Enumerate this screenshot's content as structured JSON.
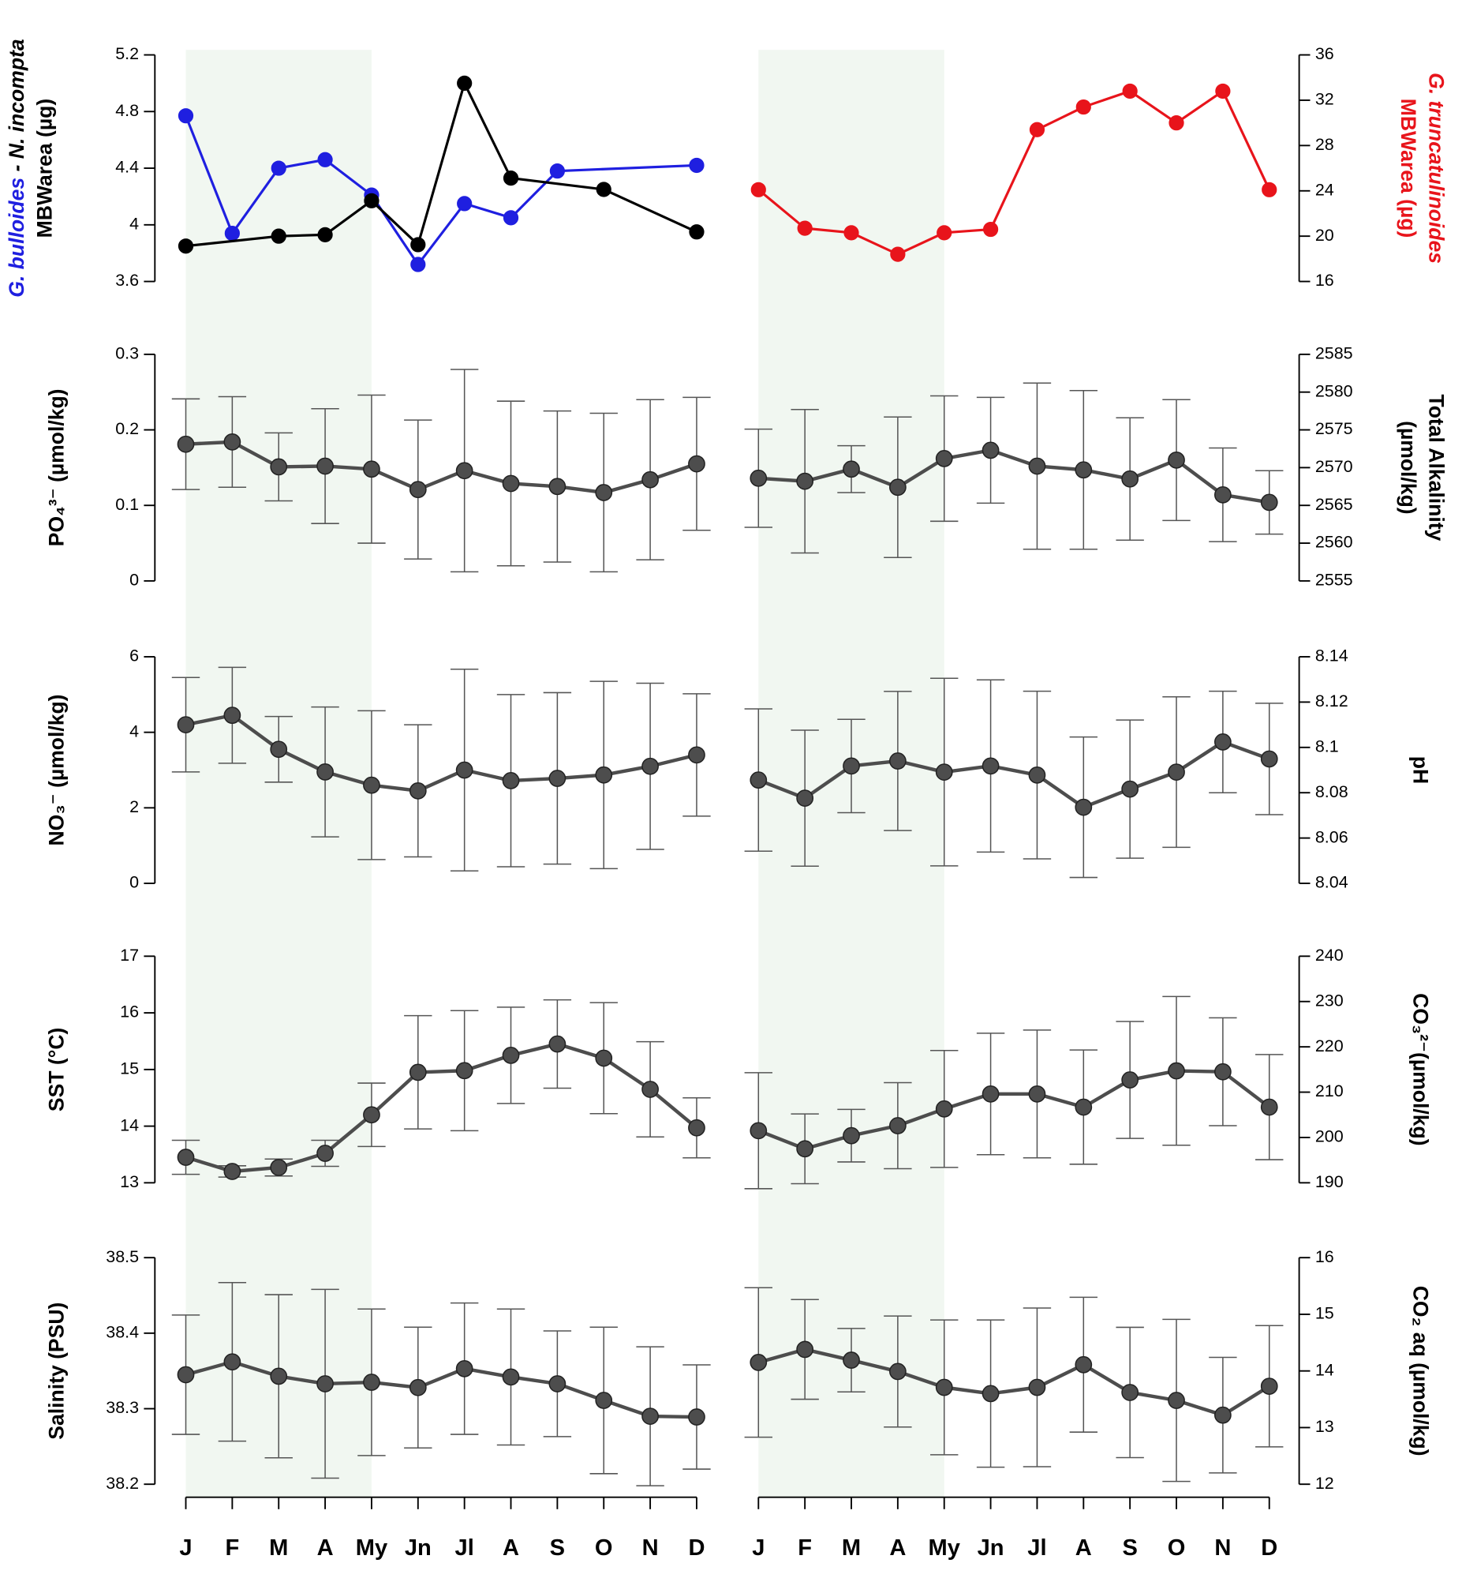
{
  "chart_data": [
    {
      "type": "line",
      "ylabel": [
        [
          "G. bulloides",
          " - ",
          "N. incompta"
        ],
        "MBWarea (µg)"
      ],
      "ylim": [
        3.6,
        5.2
      ],
      "yticks": [
        3.6,
        4,
        4.4,
        4.8,
        5.2
      ],
      "connect_gaps": true,
      "series": [
        {
          "color": "#1f1fe0",
          "values": [
            4.77,
            3.94,
            4.4,
            4.46,
            4.21,
            3.72,
            4.15,
            4.05,
            4.38,
            null,
            null,
            4.42
          ]
        },
        {
          "color": "#000000",
          "values": [
            3.85,
            null,
            3.92,
            3.93,
            4.17,
            3.86,
            5.0,
            4.33,
            null,
            4.25,
            null,
            3.95
          ]
        }
      ]
    },
    {
      "type": "line",
      "ylabel": [
        "G. truncatulinoides",
        "MBWarea (µg)"
      ],
      "ylim": [
        16,
        36
      ],
      "yticks": [
        16,
        20,
        24,
        28,
        32,
        36
      ],
      "series": [
        {
          "color": "#e8141b",
          "values": [
            24.1,
            20.7,
            20.3,
            18.4,
            20.3,
            20.6,
            29.4,
            31.4,
            32.8,
            30.0,
            32.8,
            24.1
          ]
        }
      ]
    },
    {
      "type": "line",
      "ylabel": [
        "PO₄³⁻ (µmol/kg)"
      ],
      "ylim": [
        0,
        0.3
      ],
      "yticks": [
        0,
        0.1,
        0.2,
        0.3
      ],
      "series": [
        {
          "color": "#4d4d4d",
          "values": [
            0.181,
            0.184,
            0.151,
            0.152,
            0.148,
            0.121,
            0.146,
            0.129,
            0.125,
            0.117,
            0.134,
            0.155
          ],
          "errors": [
            0.06,
            0.06,
            0.045,
            0.076,
            0.098,
            0.092,
            0.134,
            0.109,
            0.1,
            0.105,
            0.106,
            0.088
          ]
        }
      ]
    },
    {
      "type": "line",
      "ylabel": [
        "Total Alkalinity",
        "(µmol/kg)"
      ],
      "ylim": [
        2555,
        2585
      ],
      "yticks": [
        2555,
        2560,
        2565,
        2570,
        2575,
        2580,
        2585
      ],
      "series": [
        {
          "color": "#4d4d4d",
          "values": [
            2568.6,
            2568.2,
            2569.8,
            2567.4,
            2571.2,
            2572.3,
            2570.2,
            2569.7,
            2568.5,
            2571.0,
            2566.4,
            2565.4
          ],
          "errors": [
            6.5,
            9.5,
            3.1,
            9.3,
            8.3,
            7.0,
            11.0,
            10.5,
            8.1,
            8.0,
            6.2,
            4.2
          ]
        }
      ]
    },
    {
      "type": "line",
      "ylabel": [
        "NO₃⁻ (µmol/kg)"
      ],
      "ylim": [
        0,
        6
      ],
      "yticks": [
        0,
        2,
        4,
        6
      ],
      "series": [
        {
          "color": "#4d4d4d",
          "values": [
            4.2,
            4.45,
            3.55,
            2.95,
            2.6,
            2.45,
            3.0,
            2.72,
            2.78,
            2.87,
            3.1,
            3.4
          ],
          "errors": [
            1.25,
            1.27,
            0.87,
            1.72,
            1.97,
            1.75,
            2.67,
            2.28,
            2.27,
            2.48,
            2.2,
            1.62
          ]
        }
      ]
    },
    {
      "type": "line",
      "ylabel": [
        "pH"
      ],
      "ylim": [
        8.04,
        8.14
      ],
      "yticks": [
        8.04,
        8.06,
        8.08,
        8.1,
        8.12,
        8.14
      ],
      "series": [
        {
          "color": "#4d4d4d",
          "values": [
            8.0856,
            8.0776,
            8.0918,
            8.094,
            8.0891,
            8.0918,
            8.0878,
            8.0736,
            8.0816,
            8.0891,
            8.1024,
            8.0949
          ],
          "errors": [
            0.0314,
            0.03,
            0.0206,
            0.0307,
            0.0414,
            0.038,
            0.037,
            0.031,
            0.0305,
            0.0332,
            0.0224,
            0.0246
          ]
        }
      ]
    },
    {
      "type": "line",
      "ylabel": [
        "SST (°C)"
      ],
      "ylim": [
        13,
        17
      ],
      "yticks": [
        13,
        14,
        15,
        16,
        17
      ],
      "series": [
        {
          "color": "#4d4d4d",
          "values": [
            13.45,
            13.2,
            13.27,
            13.52,
            14.2,
            14.95,
            14.98,
            15.25,
            15.45,
            15.2,
            14.65,
            13.97
          ],
          "errors": [
            0.3,
            0.1,
            0.15,
            0.23,
            0.56,
            1.0,
            1.06,
            0.85,
            0.78,
            0.98,
            0.84,
            0.53
          ]
        }
      ]
    },
    {
      "type": "line",
      "ylabel": [
        "CO₃²⁻(µmol/kg)"
      ],
      "ylim": [
        190,
        240
      ],
      "yticks": [
        190,
        200,
        210,
        220,
        230,
        240
      ],
      "series": [
        {
          "color": "#4d4d4d",
          "values": [
            201.5,
            197.5,
            200.4,
            202.6,
            206.3,
            209.6,
            209.6,
            206.7,
            212.7,
            214.7,
            214.5,
            206.7
          ],
          "errors": [
            12.8,
            7.7,
            5.8,
            9.5,
            12.9,
            13.4,
            14.1,
            12.6,
            12.9,
            16.4,
            11.9,
            11.6
          ]
        }
      ]
    },
    {
      "type": "line",
      "ylabel": [
        "Salinity (PSU)"
      ],
      "ylim": [
        38.2,
        38.5
      ],
      "yticks": [
        38.2,
        38.3,
        38.4,
        38.5
      ],
      "shade": [
        0,
        4
      ],
      "categories": [
        "J",
        "F",
        "M",
        "A",
        "My",
        "Jn",
        "Jl",
        "A",
        "S",
        "O",
        "N",
        "D"
      ],
      "series": [
        {
          "color": "#4d4d4d",
          "values": [
            38.345,
            38.362,
            38.343,
            38.333,
            38.335,
            38.328,
            38.353,
            38.342,
            38.333,
            38.311,
            38.29,
            38.289
          ],
          "errors": [
            0.079,
            0.105,
            0.108,
            0.125,
            0.097,
            0.08,
            0.087,
            0.09,
            0.07,
            0.097,
            0.092,
            0.069
          ]
        }
      ]
    },
    {
      "type": "line",
      "ylabel": [
        "CO₂ aq (µmol/kg)"
      ],
      "ylim": [
        12,
        16
      ],
      "yticks": [
        12,
        13,
        14,
        15,
        16
      ],
      "shade": [
        0,
        4
      ],
      "categories": [
        "J",
        "F",
        "M",
        "A",
        "My",
        "Jn",
        "Jl",
        "A",
        "S",
        "O",
        "N",
        "D"
      ],
      "series": [
        {
          "color": "#4d4d4d",
          "values": [
            14.15,
            14.38,
            14.19,
            13.99,
            13.71,
            13.6,
            13.71,
            14.11,
            13.62,
            13.48,
            13.22,
            13.73
          ],
          "errors": [
            1.32,
            0.88,
            0.56,
            0.98,
            1.19,
            1.3,
            1.4,
            1.19,
            1.15,
            1.43,
            1.02,
            1.07
          ]
        }
      ]
    }
  ]
}
